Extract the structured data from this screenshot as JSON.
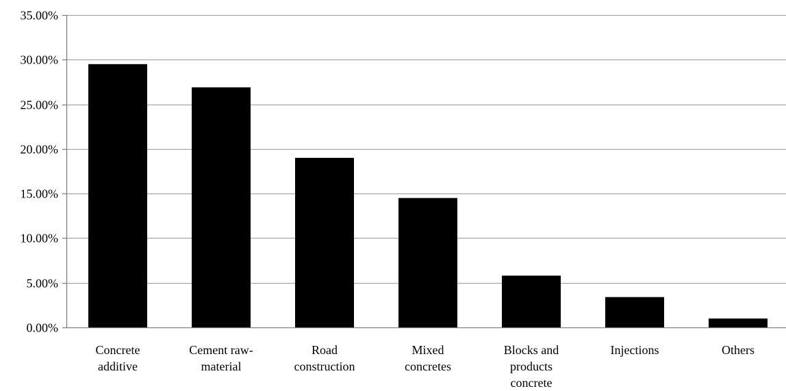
{
  "chart_data": {
    "type": "bar",
    "title": "",
    "xlabel": "",
    "ylabel": "",
    "categories": [
      [
        "Concrete",
        "additive"
      ],
      [
        "Cement raw-",
        "material"
      ],
      [
        "Road",
        "construction"
      ],
      [
        "Mixed",
        "concretes"
      ],
      [
        "Blocks and",
        "products",
        "concrete"
      ],
      [
        "Injections"
      ],
      [
        "Others"
      ]
    ],
    "values": [
      29.5,
      26.9,
      19.0,
      14.5,
      5.8,
      3.4,
      1.0
    ],
    "ylim": [
      0,
      35
    ],
    "yticks": [
      0,
      5,
      10,
      15,
      20,
      25,
      30,
      35
    ],
    "ytick_labels": [
      "0.00%",
      "5.00%",
      "10.00%",
      "15.00%",
      "20.00%",
      "25.00%",
      "30.00%",
      "35.00%"
    ],
    "grid": true,
    "legend": "none",
    "colors": {
      "bar": "#000000",
      "grid": "#a6a6a6",
      "axis": "#808080"
    }
  }
}
